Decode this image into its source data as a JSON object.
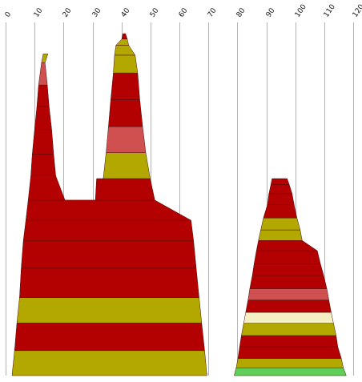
{
  "chart_data": {
    "type": "area",
    "title": "",
    "xlabel": "",
    "ylabel": "",
    "x_axis_position": "top",
    "xlim": [
      0,
      120
    ],
    "x_ticks": [
      0,
      10,
      20,
      30,
      40,
      50,
      60,
      70,
      80,
      90,
      100,
      110,
      120
    ],
    "y_axis_visible": false,
    "ylim": [
      0,
      100
    ],
    "grid": "vertical",
    "legend": "none",
    "colors": {
      "red": "#b30000",
      "olive": "#b3a800",
      "pink": "#d05050",
      "cream": "#f4f0c4",
      "green": "#5fcf5a",
      "gridline": "#b4b4b4",
      "band_border": "#4a1010"
    },
    "shapes": [
      {
        "name": "",
        "bands": [
          {
            "y0": 0,
            "y1": 7.3,
            "x0l": 2.2,
            "x0r": 69.5,
            "x1l": 3.1,
            "x1r": 68.7,
            "color": "olive"
          },
          {
            "y0": 7.3,
            "y1": 15.4,
            "x0l": 3.1,
            "x0r": 68.7,
            "x1l": 3.9,
            "x1r": 67.7,
            "color": "red"
          },
          {
            "y0": 15.4,
            "y1": 22.8,
            "x0l": 3.9,
            "x0r": 67.7,
            "x1l": 4.8,
            "x1r": 66.8,
            "color": "olive"
          },
          {
            "y0": 22.8,
            "y1": 31.4,
            "x0l": 4.8,
            "x0r": 66.8,
            "x1l": 5.4,
            "x1r": 65.8,
            "color": "red"
          },
          {
            "y0": 31.4,
            "y1": 39.4,
            "x0l": 5.4,
            "x0r": 65.8,
            "x1l": 6.1,
            "x1r": 64.9,
            "color": "red"
          },
          {
            "y0": 39.4,
            "y1": 45.4,
            "x0l": 6.1,
            "x0r": 64.9,
            "x1l": 7.0,
            "x1r": 64.0,
            "color": "red"
          },
          {
            "y0": 45.4,
            "y1": 51.3,
            "x0l": 7.0,
            "x0r": 64.0,
            "x1l": 7.8,
            "x1r": 51.5,
            "color": "red"
          },
          {
            "y0": 51.3,
            "y1": 58.4,
            "x0l": 7.8,
            "x0r": 20.5,
            "x1l": 8.7,
            "x1r": 17.3,
            "color": "red"
          },
          {
            "y0": 51.3,
            "y1": 57.6,
            "x0l": 31.0,
            "x0r": 51.5,
            "x1l": 31.4,
            "x1r": 49.9,
            "color": "red"
          },
          {
            "y0": 58.4,
            "y1": 64.7,
            "x0l": 8.7,
            "x0r": 17.3,
            "x1l": 9.2,
            "x1r": 16.6,
            "color": "red"
          },
          {
            "y0": 57.6,
            "y1": 65.2,
            "x0l": 33.7,
            "x0r": 49.9,
            "x1l": 34.7,
            "x1r": 48.4,
            "color": "olive"
          },
          {
            "y0": 64.7,
            "y1": 72.0,
            "x0l": 9.2,
            "x0r": 16.6,
            "x1l": 10.0,
            "x1r": 15.9,
            "color": "red"
          },
          {
            "y0": 65.2,
            "y1": 72.8,
            "x0l": 34.7,
            "x0r": 48.4,
            "x1l": 35.5,
            "x1r": 47.3,
            "color": "pink"
          },
          {
            "y0": 72.0,
            "y1": 78.7,
            "x0l": 10.0,
            "x0r": 15.9,
            "x1l": 10.8,
            "x1r": 15.0,
            "color": "red"
          },
          {
            "y0": 72.8,
            "y1": 80.7,
            "x0l": 35.5,
            "x0r": 47.3,
            "x1l": 36.3,
            "x1r": 46.3,
            "color": "red"
          },
          {
            "y0": 78.7,
            "y1": 85.0,
            "x0l": 10.8,
            "x0r": 15.0,
            "x1l": 11.4,
            "x1r": 14.4,
            "color": "red"
          },
          {
            "y0": 80.7,
            "y1": 88.5,
            "x0l": 36.3,
            "x0r": 46.3,
            "x1l": 37.2,
            "x1r": 45.6,
            "color": "red"
          },
          {
            "y0": 85.0,
            "y1": 91.5,
            "x0l": 11.4,
            "x0r": 14.4,
            "x1l": 12.4,
            "x1r": 13.6,
            "color": "pink"
          },
          {
            "y0": 91.5,
            "y1": 94.1,
            "x0l": 12.4,
            "x0r": 13.6,
            "x1l": 13.0,
            "x1r": 14.6,
            "color": "olive"
          },
          {
            "y0": 88.5,
            "y1": 93.7,
            "x0l": 37.2,
            "x0r": 45.6,
            "x1l": 37.6,
            "x1r": 44.7,
            "color": "olive"
          },
          {
            "y0": 93.7,
            "y1": 96.6,
            "x0l": 37.6,
            "x0r": 44.7,
            "x1l": 38.1,
            "x1r": 42.5,
            "color": "olive"
          },
          {
            "y0": 96.6,
            "y1": 98.4,
            "x0l": 38.1,
            "x0r": 42.5,
            "x1l": 40.1,
            "x1r": 42.0,
            "color": "olive"
          },
          {
            "y0": 98.4,
            "y1": 100.0,
            "x0l": 40.1,
            "x0r": 42.0,
            "x1l": 40.5,
            "x1r": 41.4,
            "color": "red"
          }
        ]
      },
      {
        "name": "",
        "bands": [
          {
            "y0": 0,
            "y1": 2.3,
            "x0l": 78.9,
            "x0r": 117.6,
            "x1l": 79.6,
            "x1r": 116.6,
            "color": "green"
          },
          {
            "y0": 2.3,
            "y1": 5.0,
            "x0l": 79.6,
            "x0r": 116.6,
            "x1l": 80.2,
            "x1r": 115.9,
            "color": "olive"
          },
          {
            "y0": 5.0,
            "y1": 8.4,
            "x0l": 80.2,
            "x0r": 115.9,
            "x1l": 80.8,
            "x1r": 114.7,
            "color": "red"
          },
          {
            "y0": 8.4,
            "y1": 11.7,
            "x0l": 80.8,
            "x0r": 114.7,
            "x1l": 81.4,
            "x1r": 114.1,
            "color": "red"
          },
          {
            "y0": 11.7,
            "y1": 15.3,
            "x0l": 81.4,
            "x0r": 114.1,
            "x1l": 82.2,
            "x1r": 113.2,
            "color": "olive"
          },
          {
            "y0": 15.3,
            "y1": 18.5,
            "x0l": 82.2,
            "x0r": 113.2,
            "x1l": 82.9,
            "x1r": 112.4,
            "color": "cream"
          },
          {
            "y0": 18.5,
            "y1": 22.1,
            "x0l": 82.9,
            "x0r": 112.4,
            "x1l": 83.7,
            "x1r": 111.6,
            "color": "red"
          },
          {
            "y0": 22.1,
            "y1": 25.4,
            "x0l": 83.7,
            "x0r": 111.6,
            "x1l": 84.3,
            "x1r": 110.9,
            "color": "pink"
          },
          {
            "y0": 25.4,
            "y1": 29.3,
            "x0l": 84.3,
            "x0r": 110.9,
            "x1l": 85.2,
            "x1r": 109.8,
            "color": "red"
          },
          {
            "y0": 29.3,
            "y1": 32.7,
            "x0l": 85.2,
            "x0r": 109.8,
            "x1l": 85.8,
            "x1r": 108.7,
            "color": "red"
          },
          {
            "y0": 32.7,
            "y1": 36.5,
            "x0l": 85.8,
            "x0r": 108.7,
            "x1l": 86.6,
            "x1r": 107.6,
            "color": "red"
          },
          {
            "y0": 36.5,
            "y1": 39.5,
            "x0l": 86.6,
            "x0r": 107.6,
            "x1l": 87.3,
            "x1r": 102.4,
            "color": "red"
          },
          {
            "y0": 39.5,
            "y1": 42.6,
            "x0l": 87.3,
            "x0r": 102.4,
            "x1l": 88.1,
            "x1r": 101.7,
            "color": "olive"
          },
          {
            "y0": 42.6,
            "y1": 46.1,
            "x0l": 88.1,
            "x0r": 101.7,
            "x1l": 89.0,
            "x1r": 100.6,
            "color": "olive"
          },
          {
            "y0": 46.1,
            "y1": 50.0,
            "x0l": 89.0,
            "x0r": 100.6,
            "x1l": 90.4,
            "x1r": 99.6,
            "color": "red"
          },
          {
            "y0": 50.0,
            "y1": 53.2,
            "x0l": 90.4,
            "x0r": 99.6,
            "x1l": 90.9,
            "x1r": 98.9,
            "color": "red"
          },
          {
            "y0": 53.2,
            "y1": 55.9,
            "x0l": 90.9,
            "x0r": 98.9,
            "x1l": 91.6,
            "x1r": 97.9,
            "color": "red"
          },
          {
            "y0": 55.9,
            "y1": 57.6,
            "x0l": 91.6,
            "x0r": 97.9,
            "x1l": 92.0,
            "x1r": 97.2,
            "color": "red"
          }
        ]
      }
    ]
  }
}
